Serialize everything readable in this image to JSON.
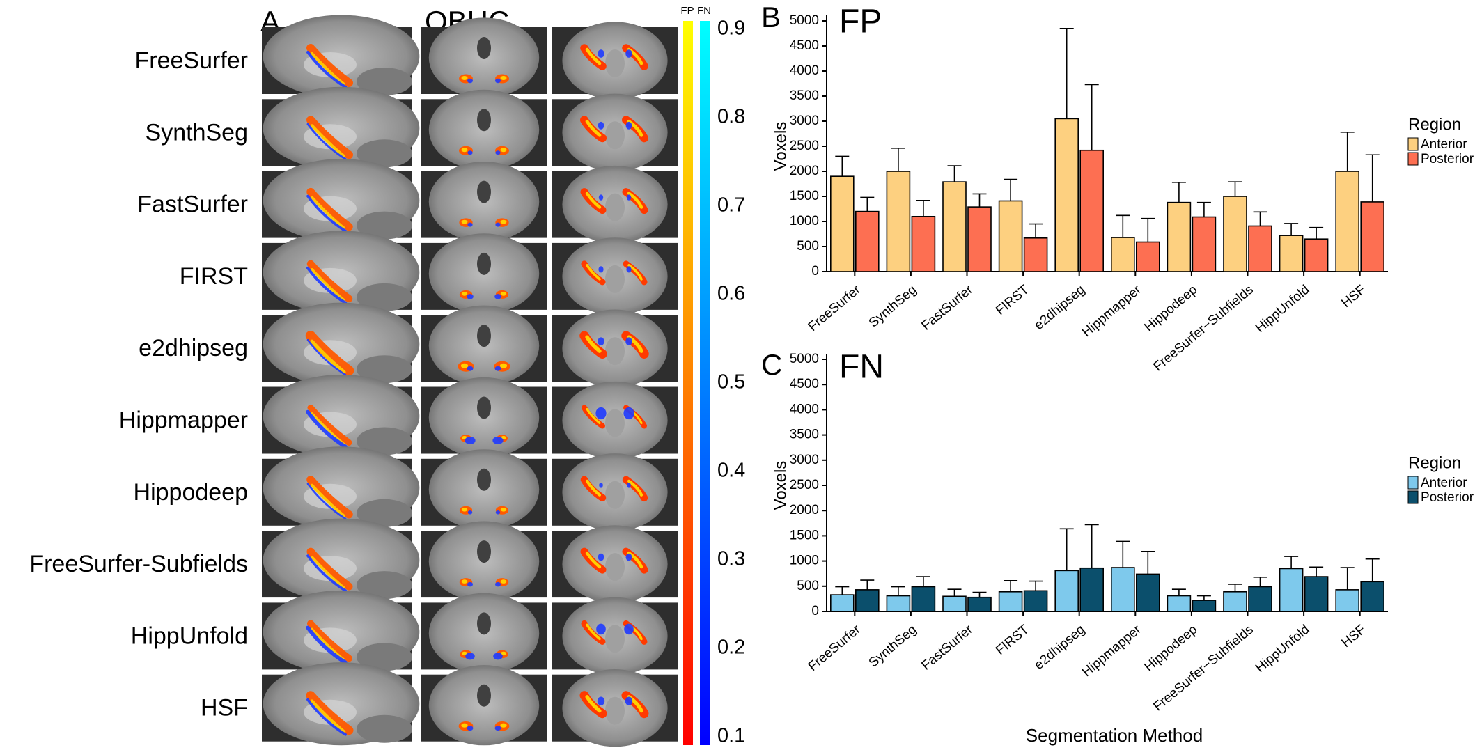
{
  "panelA": {
    "letter": "A",
    "title": "OBHC",
    "methods": [
      "FreeSurfer",
      "SynthSeg",
      "FastSurfer",
      "FIRST",
      "e2dhipseg",
      "Hippmapper",
      "Hippodeep",
      "FreeSurfer-Subfields",
      "HippUnfold",
      "HSF"
    ],
    "colorbar_labels": [
      "FP",
      "FN"
    ],
    "colorbar_ticks": [
      "0.9",
      "0.8",
      "0.7",
      "0.6",
      "0.5",
      "0.4",
      "0.3",
      "0.2",
      "0.1"
    ],
    "colorbar_values": [
      0.9,
      0.8,
      0.7,
      0.6,
      0.5,
      0.4,
      0.3,
      0.2,
      0.1
    ],
    "colors": {
      "fp_top": "#ffff00",
      "fp_mid": "#ff8000",
      "fp_bottom": "#ff0000",
      "fn_top": "#00ffff",
      "fn_mid": "#0080ff",
      "fn_bottom": "#0000ff"
    },
    "overlay_levels": [
      {
        "sag_fp": 0.6,
        "sag_fn": 0.35,
        "cor_fp": 0.5,
        "cor_fn": 0.25,
        "ax_fp": 0.65,
        "ax_fn": 0.35
      },
      {
        "sag_fp": 0.6,
        "sag_fn": 0.15,
        "cor_fp": 0.5,
        "cor_fn": 0.2,
        "ax_fp": 0.7,
        "ax_fn": 0.3
      },
      {
        "sag_fp": 0.55,
        "sag_fn": 0.3,
        "cor_fp": 0.45,
        "cor_fn": 0.2,
        "ax_fp": 0.6,
        "ax_fn": 0.15
      },
      {
        "sag_fp": 0.45,
        "sag_fn": 0.35,
        "cor_fp": 0.4,
        "cor_fn": 0.35,
        "ax_fp": 0.4,
        "ax_fn": 0.2
      },
      {
        "sag_fp": 0.85,
        "sag_fn": 0.1,
        "cor_fp": 0.7,
        "cor_fn": 0.3,
        "ax_fp": 0.85,
        "ax_fn": 0.35
      },
      {
        "sag_fp": 0.3,
        "sag_fn": 0.6,
        "cor_fp": 0.25,
        "cor_fn": 0.7,
        "ax_fp": 0.3,
        "ax_fn": 0.7
      },
      {
        "sag_fp": 0.55,
        "sag_fn": 0.1,
        "cor_fp": 0.4,
        "cor_fn": 0.15,
        "ax_fp": 0.55,
        "ax_fn": 0.1
      },
      {
        "sag_fp": 0.5,
        "sag_fn": 0.3,
        "cor_fp": 0.4,
        "cor_fn": 0.25,
        "ax_fp": 0.6,
        "ax_fn": 0.3
      },
      {
        "sag_fp": 0.4,
        "sag_fn": 0.6,
        "cor_fp": 0.35,
        "cor_fn": 0.6,
        "ax_fp": 0.4,
        "ax_fn": 0.6
      },
      {
        "sag_fp": 0.7,
        "sag_fn": 0.3,
        "cor_fp": 0.55,
        "cor_fn": 0.3,
        "ax_fp": 0.8,
        "ax_fn": 0.4
      }
    ]
  },
  "chart_data": [
    {
      "panel": "B",
      "type": "bar",
      "title": "FP",
      "categories": [
        "FreeSurfer",
        "SynthSeg",
        "FastSurfer",
        "FIRST",
        "e2dhipseg",
        "Hippmapper",
        "Hippodeep",
        "FreeSurfer−Subfields",
        "HippUnfold",
        "HSF"
      ],
      "ylabel": "Voxels",
      "xlabel": "",
      "ylim": [
        0,
        5000
      ],
      "yticks": [
        0,
        500,
        1000,
        1500,
        2000,
        2500,
        3000,
        3500,
        4000,
        4500,
        5000
      ],
      "legend": {
        "title": "Region",
        "position": "right"
      },
      "series": [
        {
          "name": "Anterior",
          "color": "#fdd080",
          "values": [
            1900,
            2000,
            1790,
            1410,
            3050,
            680,
            1380,
            1500,
            720,
            2000
          ],
          "error_upper": [
            2300,
            2460,
            2110,
            1840,
            4850,
            1120,
            1780,
            1790,
            960,
            2780
          ]
        },
        {
          "name": "Posterior",
          "color": "#fd6f52",
          "values": [
            1200,
            1100,
            1290,
            670,
            2420,
            590,
            1090,
            910,
            650,
            1390
          ],
          "error_upper": [
            1480,
            1420,
            1550,
            950,
            3730,
            1060,
            1380,
            1190,
            880,
            2330
          ]
        }
      ]
    },
    {
      "panel": "C",
      "type": "bar",
      "title": "FN",
      "categories": [
        "FreeSurfer",
        "SynthSeg",
        "FastSurfer",
        "FIRST",
        "e2dhipseg",
        "Hippmapper",
        "Hippodeep",
        "FreeSurfer−Subfields",
        "HippUnfold",
        "HSF"
      ],
      "ylabel": "Voxels",
      "xlabel": "Segmentation Method",
      "ylim": [
        0,
        5000
      ],
      "yticks": [
        0,
        500,
        1000,
        1500,
        2000,
        2500,
        3000,
        3500,
        4000,
        4500,
        5000
      ],
      "legend": {
        "title": "Region",
        "position": "right"
      },
      "series": [
        {
          "name": "Anterior",
          "color": "#7ec9ec",
          "values": [
            330,
            310,
            300,
            390,
            810,
            870,
            310,
            390,
            850,
            430
          ],
          "error_upper": [
            490,
            490,
            440,
            610,
            1640,
            1390,
            440,
            540,
            1090,
            870
          ]
        },
        {
          "name": "Posterior",
          "color": "#0b4f6c",
          "values": [
            430,
            490,
            280,
            410,
            860,
            740,
            220,
            490,
            690,
            590
          ],
          "error_upper": [
            620,
            690,
            380,
            600,
            1720,
            1190,
            310,
            680,
            880,
            1040
          ]
        }
      ]
    }
  ]
}
